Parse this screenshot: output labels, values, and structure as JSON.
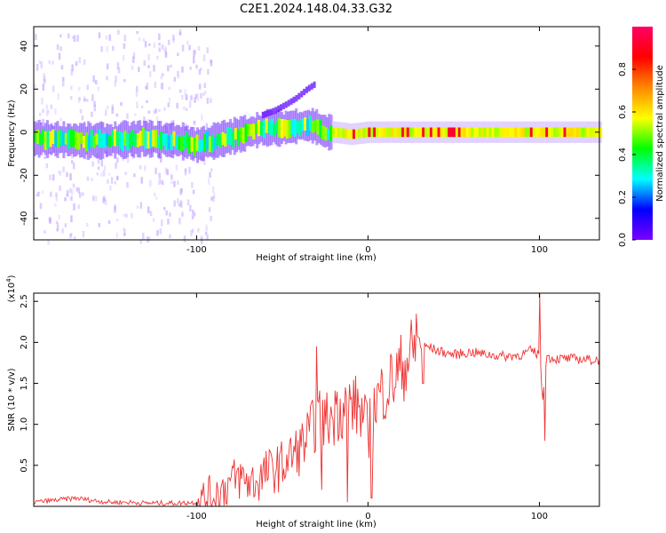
{
  "title": "C2E1.2024.148.04.33.G32",
  "colormap": [
    "#7a00ff",
    "#0000ff",
    "#00ffff",
    "#00ff00",
    "#ffff00",
    "#ff8800",
    "#ff0000",
    "#ff0066"
  ],
  "chart_data": [
    {
      "type": "heatmap",
      "xlabel": "Height of straight line (km)",
      "ylabel": "Frequency (Hz)",
      "xlim": [
        -195,
        135
      ],
      "ylim": [
        -50,
        49
      ],
      "xticks": [
        -100,
        0,
        100
      ],
      "xtick_labels": [
        "-100",
        "0",
        "100"
      ],
      "yticks": [
        -40,
        -20,
        0,
        20,
        40
      ],
      "ytick_labels": [
        "-40",
        "-20",
        "0",
        "20",
        "40"
      ],
      "colorbar": {
        "label": "Normalized spectral amplitude",
        "range": [
          0,
          1
        ],
        "ticks": [
          0,
          0.2,
          0.4,
          0.6,
          0.8
        ],
        "tick_labels": [
          "0.0",
          "0.2",
          "0.4",
          "0.6",
          "0.8"
        ]
      },
      "ridge": {
        "x": [
          -195,
          -160,
          -130,
          -110,
          -100,
          -90,
          -80,
          -70,
          -60,
          -50,
          -40,
          -32,
          -28,
          -24,
          -20,
          -10,
          0,
          20,
          50,
          100,
          135
        ],
        "y": [
          -3,
          -4,
          -3,
          -4,
          -6,
          -4,
          -2,
          0,
          2,
          2,
          3,
          3,
          1,
          0,
          0,
          -1,
          0,
          0,
          0,
          0,
          0
        ]
      },
      "branch": {
        "x": [
          -62,
          -55,
          -48,
          -42,
          -36,
          -32
        ],
        "y": [
          8,
          10,
          13,
          16,
          20,
          22
        ]
      }
    },
    {
      "type": "line",
      "xlabel": "Height of straight line (km)",
      "ylabel": "SNR (10 * v/v)",
      "scale_label_base": "(x10",
      "scale_label_exp": "4",
      "scale_label_close": ")",
      "color": "#ee3333",
      "xlim": [
        -195,
        135
      ],
      "ylim": [
        0,
        2.6
      ],
      "xticks": [
        -100,
        0,
        100
      ],
      "xtick_labels": [
        "-100",
        "0",
        "100"
      ],
      "yticks": [
        0.5,
        1.0,
        1.5,
        2.0,
        2.5
      ],
      "ytick_labels": [
        "0.5",
        "1.0",
        "1.5",
        "2.0",
        "2.5"
      ],
      "series": [
        {
          "x": [
            -195,
            -180,
            -170,
            -160,
            -150,
            -140,
            -130,
            -120,
            -110,
            -100,
            -92,
            -85,
            -80,
            -75,
            -70,
            -65,
            -60,
            -55,
            -50,
            -45,
            -40,
            -35,
            -30,
            -25,
            -20,
            -15,
            -10,
            -5,
            0,
            5,
            10,
            15,
            20,
            25,
            30,
            35,
            40,
            50,
            60,
            70,
            80,
            90,
            95,
            100,
            102,
            104,
            110,
            120,
            135
          ],
          "y": [
            0.05,
            0.08,
            0.1,
            0.07,
            0.05,
            0.05,
            0.04,
            0.04,
            0.04,
            0.05,
            0.12,
            0.2,
            0.3,
            0.35,
            0.3,
            0.3,
            0.4,
            0.45,
            0.5,
            0.6,
            0.7,
            0.85,
            1.05,
            1.05,
            1.1,
            1.2,
            1.25,
            1.2,
            0.9,
            1.3,
            1.45,
            1.55,
            1.7,
            1.85,
            1.95,
            1.95,
            1.9,
            1.85,
            1.88,
            1.85,
            1.83,
            1.85,
            1.9,
            1.85,
            1.3,
            1.82,
            1.8,
            1.8,
            1.78
          ]
        }
      ],
      "spikes": [
        {
          "x": -30,
          "y": 1.95
        },
        {
          "x": -27,
          "y": 0.2
        },
        {
          "x": -18,
          "y": 1.4
        },
        {
          "x": -12,
          "y": 0.05
        },
        {
          "x": 2,
          "y": 0.1
        },
        {
          "x": 28,
          "y": 2.35
        },
        {
          "x": 32,
          "y": 1.5
        },
        {
          "x": 100,
          "y": 2.6
        },
        {
          "x": 103,
          "y": 0.8
        }
      ]
    }
  ]
}
